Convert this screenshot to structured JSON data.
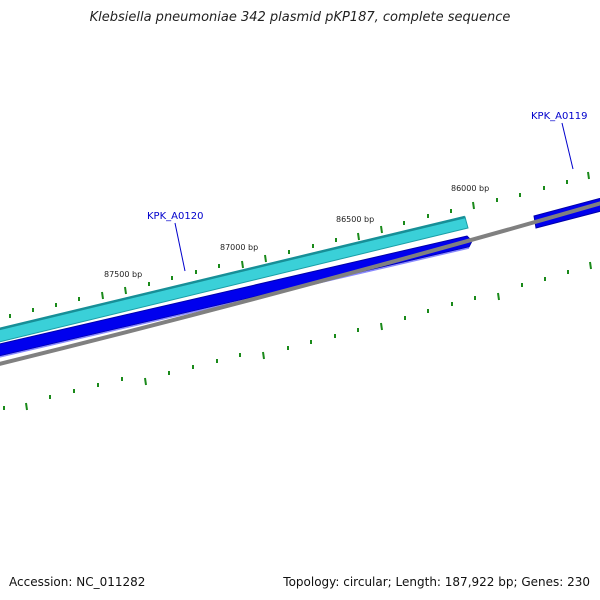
{
  "title": "Klebsiella pneumoniae 342 plasmid pKP187, complete sequence",
  "footer": {
    "accession": "Accession: NC_011282",
    "summary": "Topology: circular; Length: 187,922 bp; Genes: 230"
  },
  "ruler": {
    "labels": [
      "87500 bp",
      "87000 bp",
      "86500 bp",
      "86000 bp"
    ]
  },
  "genes": [
    {
      "name": "KPK_A0120"
    },
    {
      "name": "KPK_A0119"
    }
  ],
  "colors": {
    "tick": "#1a8a1a",
    "backbone": "#808080",
    "forward_feature": "#3ad0d8",
    "forward_feature_edge": "#1a9ea6",
    "reverse_feature": "#0000ee",
    "reverse_feature_edge": "#0000aa",
    "gene_label": "#0000cc"
  }
}
